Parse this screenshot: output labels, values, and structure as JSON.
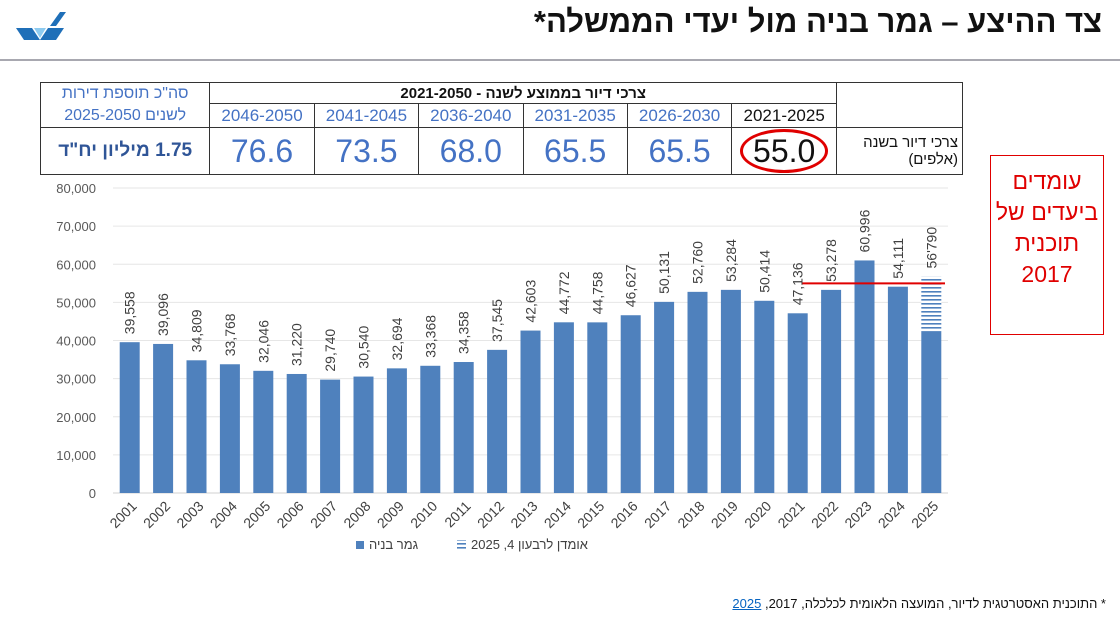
{
  "header": {
    "title": "צד ההיצע – גמר בניה מול יעדי הממשלה*",
    "logo": "ministry-logo"
  },
  "needs_table": {
    "header": "צרכי דיור בממוצע לשנה - 2021-2050",
    "row_label": "צרכי דיור בשנה (אלפים)",
    "total_label": "סה\"כ תוספת דירות לשנים 2025-2050",
    "total_value": "1.75 מיליון יח\"ד",
    "periods": [
      {
        "label": "2021-2025",
        "value": "55.0",
        "highlighted": true
      },
      {
        "label": "2026-2030",
        "value": "65.5"
      },
      {
        "label": "2031-2035",
        "value": "65.5"
      },
      {
        "label": "2036-2040",
        "value": "68.0"
      },
      {
        "label": "2041-2045",
        "value": "73.5"
      },
      {
        "label": "2046-2050",
        "value": "76.6"
      }
    ]
  },
  "callout": {
    "text": "עומדים ביעדים של תוכנית 2017",
    "color": "#e00000"
  },
  "footnote": {
    "text": "* התוכנית האסטרטגית לדיור, המועצה הלאומית לכלכלה, 2017, ",
    "link": "2025"
  },
  "chart_data": {
    "type": "bar",
    "categories": [
      "2001",
      "2002",
      "2003",
      "2004",
      "2005",
      "2006",
      "2007",
      "2008",
      "2009",
      "2010",
      "2011",
      "2012",
      "2013",
      "2014",
      "2015",
      "2016",
      "2017",
      "2018",
      "2019",
      "2020",
      "2021",
      "2022",
      "2023",
      "2024",
      "2025"
    ],
    "series": [
      {
        "name": "גמר בניה",
        "color": "#4f81bd",
        "values": [
          39558,
          39096,
          34809,
          33768,
          32046,
          31220,
          29740,
          30540,
          32694,
          33368,
          34358,
          37545,
          42603,
          44772,
          44758,
          46627,
          50131,
          52760,
          53284,
          50414,
          47136,
          53278,
          60996,
          54111,
          42300
        ]
      },
      {
        "name": "אומדן לרבעון 4, 2025",
        "pattern": "horizontal-hatch",
        "color": "#4f81bd",
        "values": [
          null,
          null,
          null,
          null,
          null,
          null,
          null,
          null,
          null,
          null,
          null,
          null,
          null,
          null,
          null,
          null,
          null,
          null,
          null,
          null,
          null,
          null,
          null,
          null,
          56790
        ]
      }
    ],
    "data_labels": [
      "39,558",
      "39,096",
      "34,809",
      "33,768",
      "32,046",
      "31,220",
      "29,740",
      "30,540",
      "32,694",
      "33,368",
      "34,358",
      "37,545",
      "42,603",
      "44,772",
      "44,758",
      "46,627",
      "50,131",
      "52,760",
      "53,284",
      "50,414",
      "47,136",
      "53,278",
      "60,996",
      "54,111",
      "56'790"
    ],
    "yticks": [
      "0",
      "10,000",
      "20,000",
      "30,000",
      "40,000",
      "50,000",
      "60,000",
      "70,000",
      "80,000"
    ],
    "ylim": [
      0,
      80000
    ],
    "grid": true,
    "reference_line": {
      "value": 55000,
      "from": "2022",
      "to": "2025",
      "color": "#e00000"
    },
    "legend_position": "bottom"
  }
}
